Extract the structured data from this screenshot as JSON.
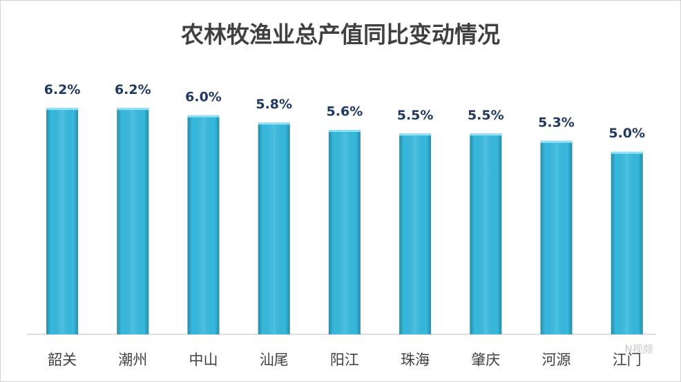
{
  "chart_data": {
    "type": "bar",
    "title": "农林牧渔业总产值同比变动情况",
    "categories": [
      "韶关",
      "潮州",
      "中山",
      "汕尾",
      "阳江",
      "珠海",
      "肇庆",
      "河源",
      "江门"
    ],
    "values": [
      6.2,
      6.2,
      6.0,
      5.8,
      5.6,
      5.5,
      5.5,
      5.3,
      5.0
    ],
    "value_labels": [
      "6.2%",
      "6.2%",
      "6.0%",
      "5.8%",
      "5.6%",
      "5.5%",
      "5.5%",
      "5.3%",
      "5.0%"
    ],
    "color": "#36b9de",
    "ylim": [
      0,
      7
    ],
    "watermark": "N视频"
  }
}
